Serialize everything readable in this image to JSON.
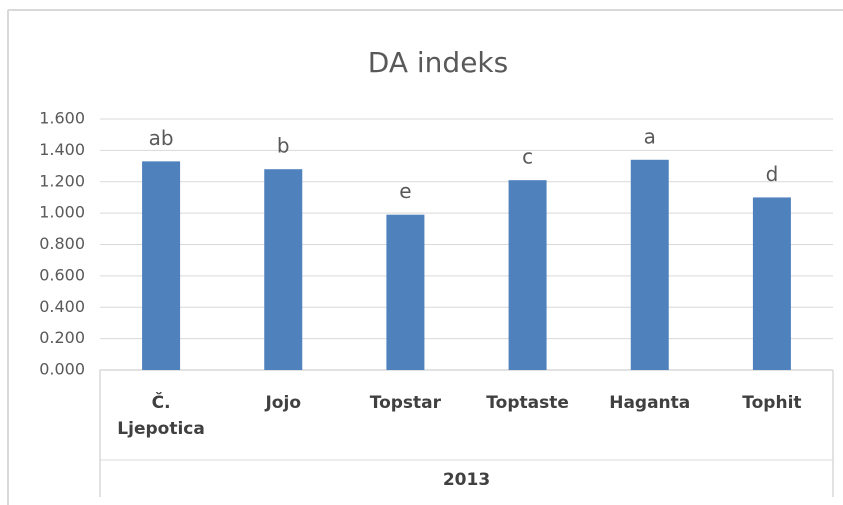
{
  "chart_data": {
    "type": "bar",
    "title": "DA indeks",
    "categories": [
      "Č. Ljepotica",
      "Jojo",
      "Topstar",
      "Toptaste",
      "Haganta",
      "Tophit"
    ],
    "group": "2013",
    "values": [
      1.33,
      1.28,
      0.99,
      1.21,
      1.34,
      1.1
    ],
    "annotations": [
      "ab",
      "b",
      "e",
      "c",
      "a",
      "d"
    ],
    "color": "#4f81bd",
    "ylim": [
      0,
      1.6
    ],
    "yticks": [
      {
        "value": 0,
        "label": "0.000"
      },
      {
        "value": 0.2,
        "label": "0.200"
      },
      {
        "value": 0.4,
        "label": "0.400"
      },
      {
        "value": 0.6,
        "label": "0.600"
      },
      {
        "value": 0.8,
        "label": "0.800"
      },
      {
        "value": 1.0,
        "label": "1.000"
      },
      {
        "value": 1.2,
        "label": "1.200"
      },
      {
        "value": 1.4,
        "label": "1.400"
      },
      {
        "value": 1.6,
        "label": "1.600"
      }
    ],
    "grid": true
  }
}
